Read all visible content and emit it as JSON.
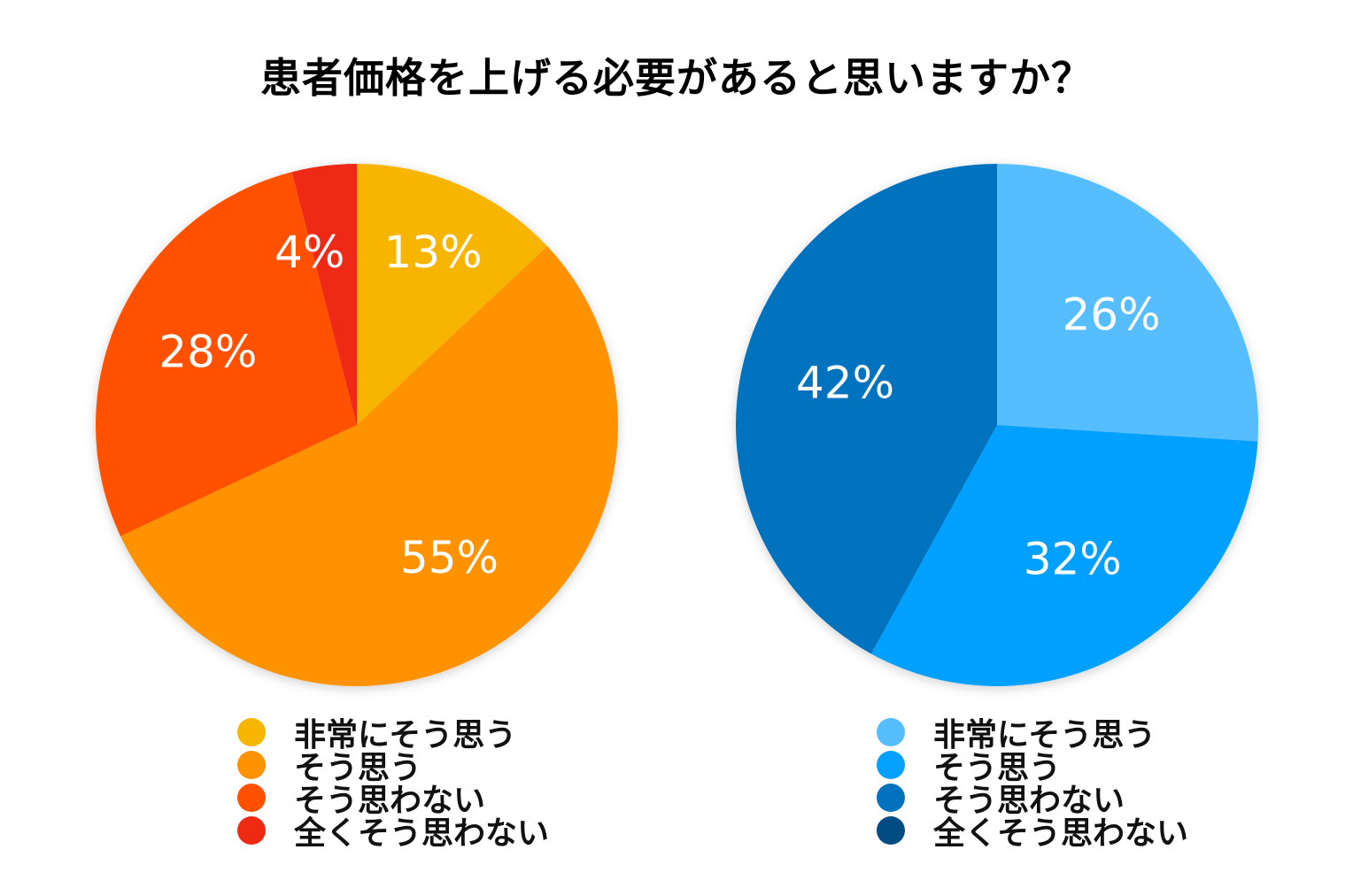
{
  "title": "患者価格を上げる必要があると思いますか？",
  "chart_data": [
    {
      "type": "pie",
      "categories": [
        "非常にそう思う",
        "そう思う",
        "そう思わない",
        "全くそう思わない"
      ],
      "values": [
        13,
        55,
        28,
        4
      ],
      "labels": [
        "13%",
        "55%",
        "28%",
        "4%"
      ],
      "colors": [
        "#F7B500",
        "#FF9200",
        "#FF5100",
        "#EE2A12"
      ],
      "legend_position": "bottom"
    },
    {
      "type": "pie",
      "categories": [
        "非常にそう思う",
        "そう思う",
        "そう思わない",
        "全くそう思わない"
      ],
      "values": [
        26,
        32,
        42,
        0
      ],
      "labels": [
        "26%",
        "32%",
        "42%"
      ],
      "colors": [
        "#56BEFF",
        "#06A0FF",
        "#0272BE",
        "#024C84"
      ],
      "legend_position": "bottom"
    }
  ]
}
